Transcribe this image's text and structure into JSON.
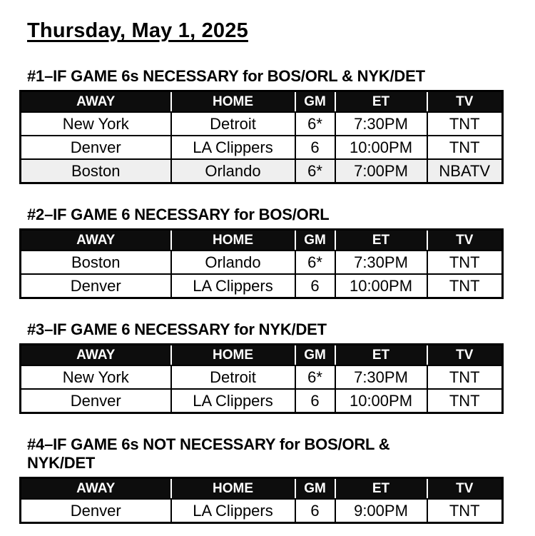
{
  "page": {
    "title": "Thursday, May 1, 2025"
  },
  "columns": [
    "AWAY",
    "HOME",
    "GM",
    "ET",
    "TV"
  ],
  "sections": [
    {
      "heading": "#1–IF GAME 6s NECESSARY for BOS/ORL & NYK/DET",
      "rows": [
        {
          "away": "New York",
          "home": "Detroit",
          "gm": "6*",
          "et": "7:30PM",
          "tv": "TNT",
          "shaded": false
        },
        {
          "away": "Denver",
          "home": "LA Clippers",
          "gm": "6",
          "et": "10:00PM",
          "tv": "TNT",
          "shaded": false
        },
        {
          "away": "Boston",
          "home": "Orlando",
          "gm": "6*",
          "et": "7:00PM",
          "tv": "NBATV",
          "shaded": true
        }
      ]
    },
    {
      "heading": "#2–IF GAME 6 NECESSARY for BOS/ORL",
      "rows": [
        {
          "away": "Boston",
          "home": "Orlando",
          "gm": "6*",
          "et": "7:30PM",
          "tv": "TNT",
          "shaded": false
        },
        {
          "away": "Denver",
          "home": "LA Clippers",
          "gm": "6",
          "et": "10:00PM",
          "tv": "TNT",
          "shaded": false
        }
      ]
    },
    {
      "heading": "#3–IF GAME 6 NECESSARY for NYK/DET",
      "rows": [
        {
          "away": "New York",
          "home": "Detroit",
          "gm": "6*",
          "et": "7:30PM",
          "tv": "TNT",
          "shaded": false
        },
        {
          "away": "Denver",
          "home": "LA Clippers",
          "gm": "6",
          "et": "10:00PM",
          "tv": "TNT",
          "shaded": false
        }
      ]
    },
    {
      "heading": "#4–IF GAME 6s NOT NECESSARY for BOS/ORL &\nNYK/DET",
      "rows": [
        {
          "away": "Denver",
          "home": "LA Clippers",
          "gm": "6",
          "et": "9:00PM",
          "tv": "TNT",
          "shaded": false
        }
      ]
    }
  ],
  "colors": {
    "header_bg": "#0d0d0d",
    "header_text": "#ffffff",
    "shaded_row_bg": "#efefef",
    "border": "#000000",
    "page_bg": "#ffffff"
  }
}
